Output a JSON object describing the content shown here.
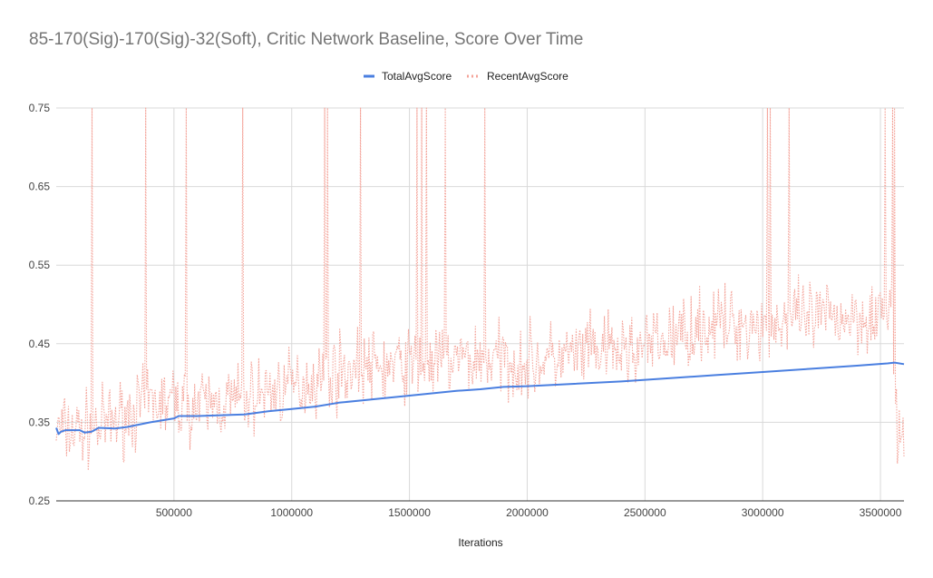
{
  "chart_data": {
    "type": "line",
    "title": "85-170(Sig)-170(Sig)-32(Soft), Critic Network Baseline, Score Over Time",
    "xlabel": "Iterations",
    "ylabel": "",
    "xlim": [
      0,
      3600000
    ],
    "ylim": [
      0.25,
      0.75
    ],
    "x_ticks": [
      500000,
      1000000,
      1500000,
      2000000,
      2500000,
      3000000,
      3500000
    ],
    "x_tick_labels": [
      "500000",
      "1000000",
      "1500000",
      "2000000",
      "2500000",
      "3000000",
      "3500000"
    ],
    "y_ticks": [
      0.25,
      0.35,
      0.45,
      0.55,
      0.65,
      0.75
    ],
    "y_tick_labels": [
      "0.25",
      "0.35",
      "0.45",
      "0.55",
      "0.65",
      "0.75"
    ],
    "grid": true,
    "legend_position": "top",
    "series": [
      {
        "name": "TotalAvgScore",
        "color": "#4a7fe0",
        "style": "solid",
        "x": [
          0,
          10000,
          20000,
          40000,
          60000,
          100000,
          120000,
          150000,
          180000,
          250000,
          300000,
          350000,
          400000,
          500000,
          520000,
          600000,
          700000,
          800000,
          900000,
          1000000,
          1100000,
          1200000,
          1300000,
          1400000,
          1500000,
          1600000,
          1700000,
          1800000,
          1900000,
          2000000,
          2200000,
          2400000,
          2600000,
          2800000,
          3000000,
          3200000,
          3400000,
          3530000,
          3560000,
          3600000
        ],
        "y": [
          0.343,
          0.335,
          0.338,
          0.34,
          0.34,
          0.34,
          0.337,
          0.338,
          0.343,
          0.342,
          0.344,
          0.347,
          0.35,
          0.355,
          0.358,
          0.358,
          0.359,
          0.36,
          0.364,
          0.367,
          0.37,
          0.375,
          0.378,
          0.381,
          0.384,
          0.387,
          0.39,
          0.392,
          0.395,
          0.396,
          0.399,
          0.402,
          0.406,
          0.41,
          0.414,
          0.418,
          0.422,
          0.425,
          0.426,
          0.424
        ]
      },
      {
        "name": "RecentAvgScore",
        "color": "#f4a49a",
        "style": "dotted",
        "x": [
          0,
          100000,
          200000,
          300000,
          400000,
          500000,
          600000,
          700000,
          800000,
          900000,
          1000000,
          1100000,
          1200000,
          1300000,
          1400000,
          1500000,
          1600000,
          1700000,
          1800000,
          1900000,
          2000000,
          2100000,
          2200000,
          2300000,
          2400000,
          2500000,
          2600000,
          2700000,
          2800000,
          2900000,
          3000000,
          3100000,
          3200000,
          3300000,
          3400000,
          3500000,
          3550000,
          3570000,
          3600000
        ],
        "y": [
          0.34,
          0.34,
          0.345,
          0.36,
          0.375,
          0.375,
          0.37,
          0.375,
          0.38,
          0.39,
          0.395,
          0.405,
          0.415,
          0.42,
          0.42,
          0.425,
          0.425,
          0.43,
          0.43,
          0.43,
          0.425,
          0.43,
          0.435,
          0.44,
          0.44,
          0.445,
          0.455,
          0.47,
          0.475,
          0.475,
          0.475,
          0.48,
          0.48,
          0.485,
          0.485,
          0.49,
          0.49,
          0.33,
          0.33
        ],
        "noise_amplitude": 0.035,
        "spikes_x": [
          150000,
          380000,
          550000,
          790000,
          1140000,
          1150000,
          1290000,
          1530000,
          1550000,
          1570000,
          1650000,
          1820000,
          3020000,
          3030000,
          3110000,
          3520000,
          3550000,
          3560000
        ],
        "spikes_y": 0.75
      }
    ]
  }
}
